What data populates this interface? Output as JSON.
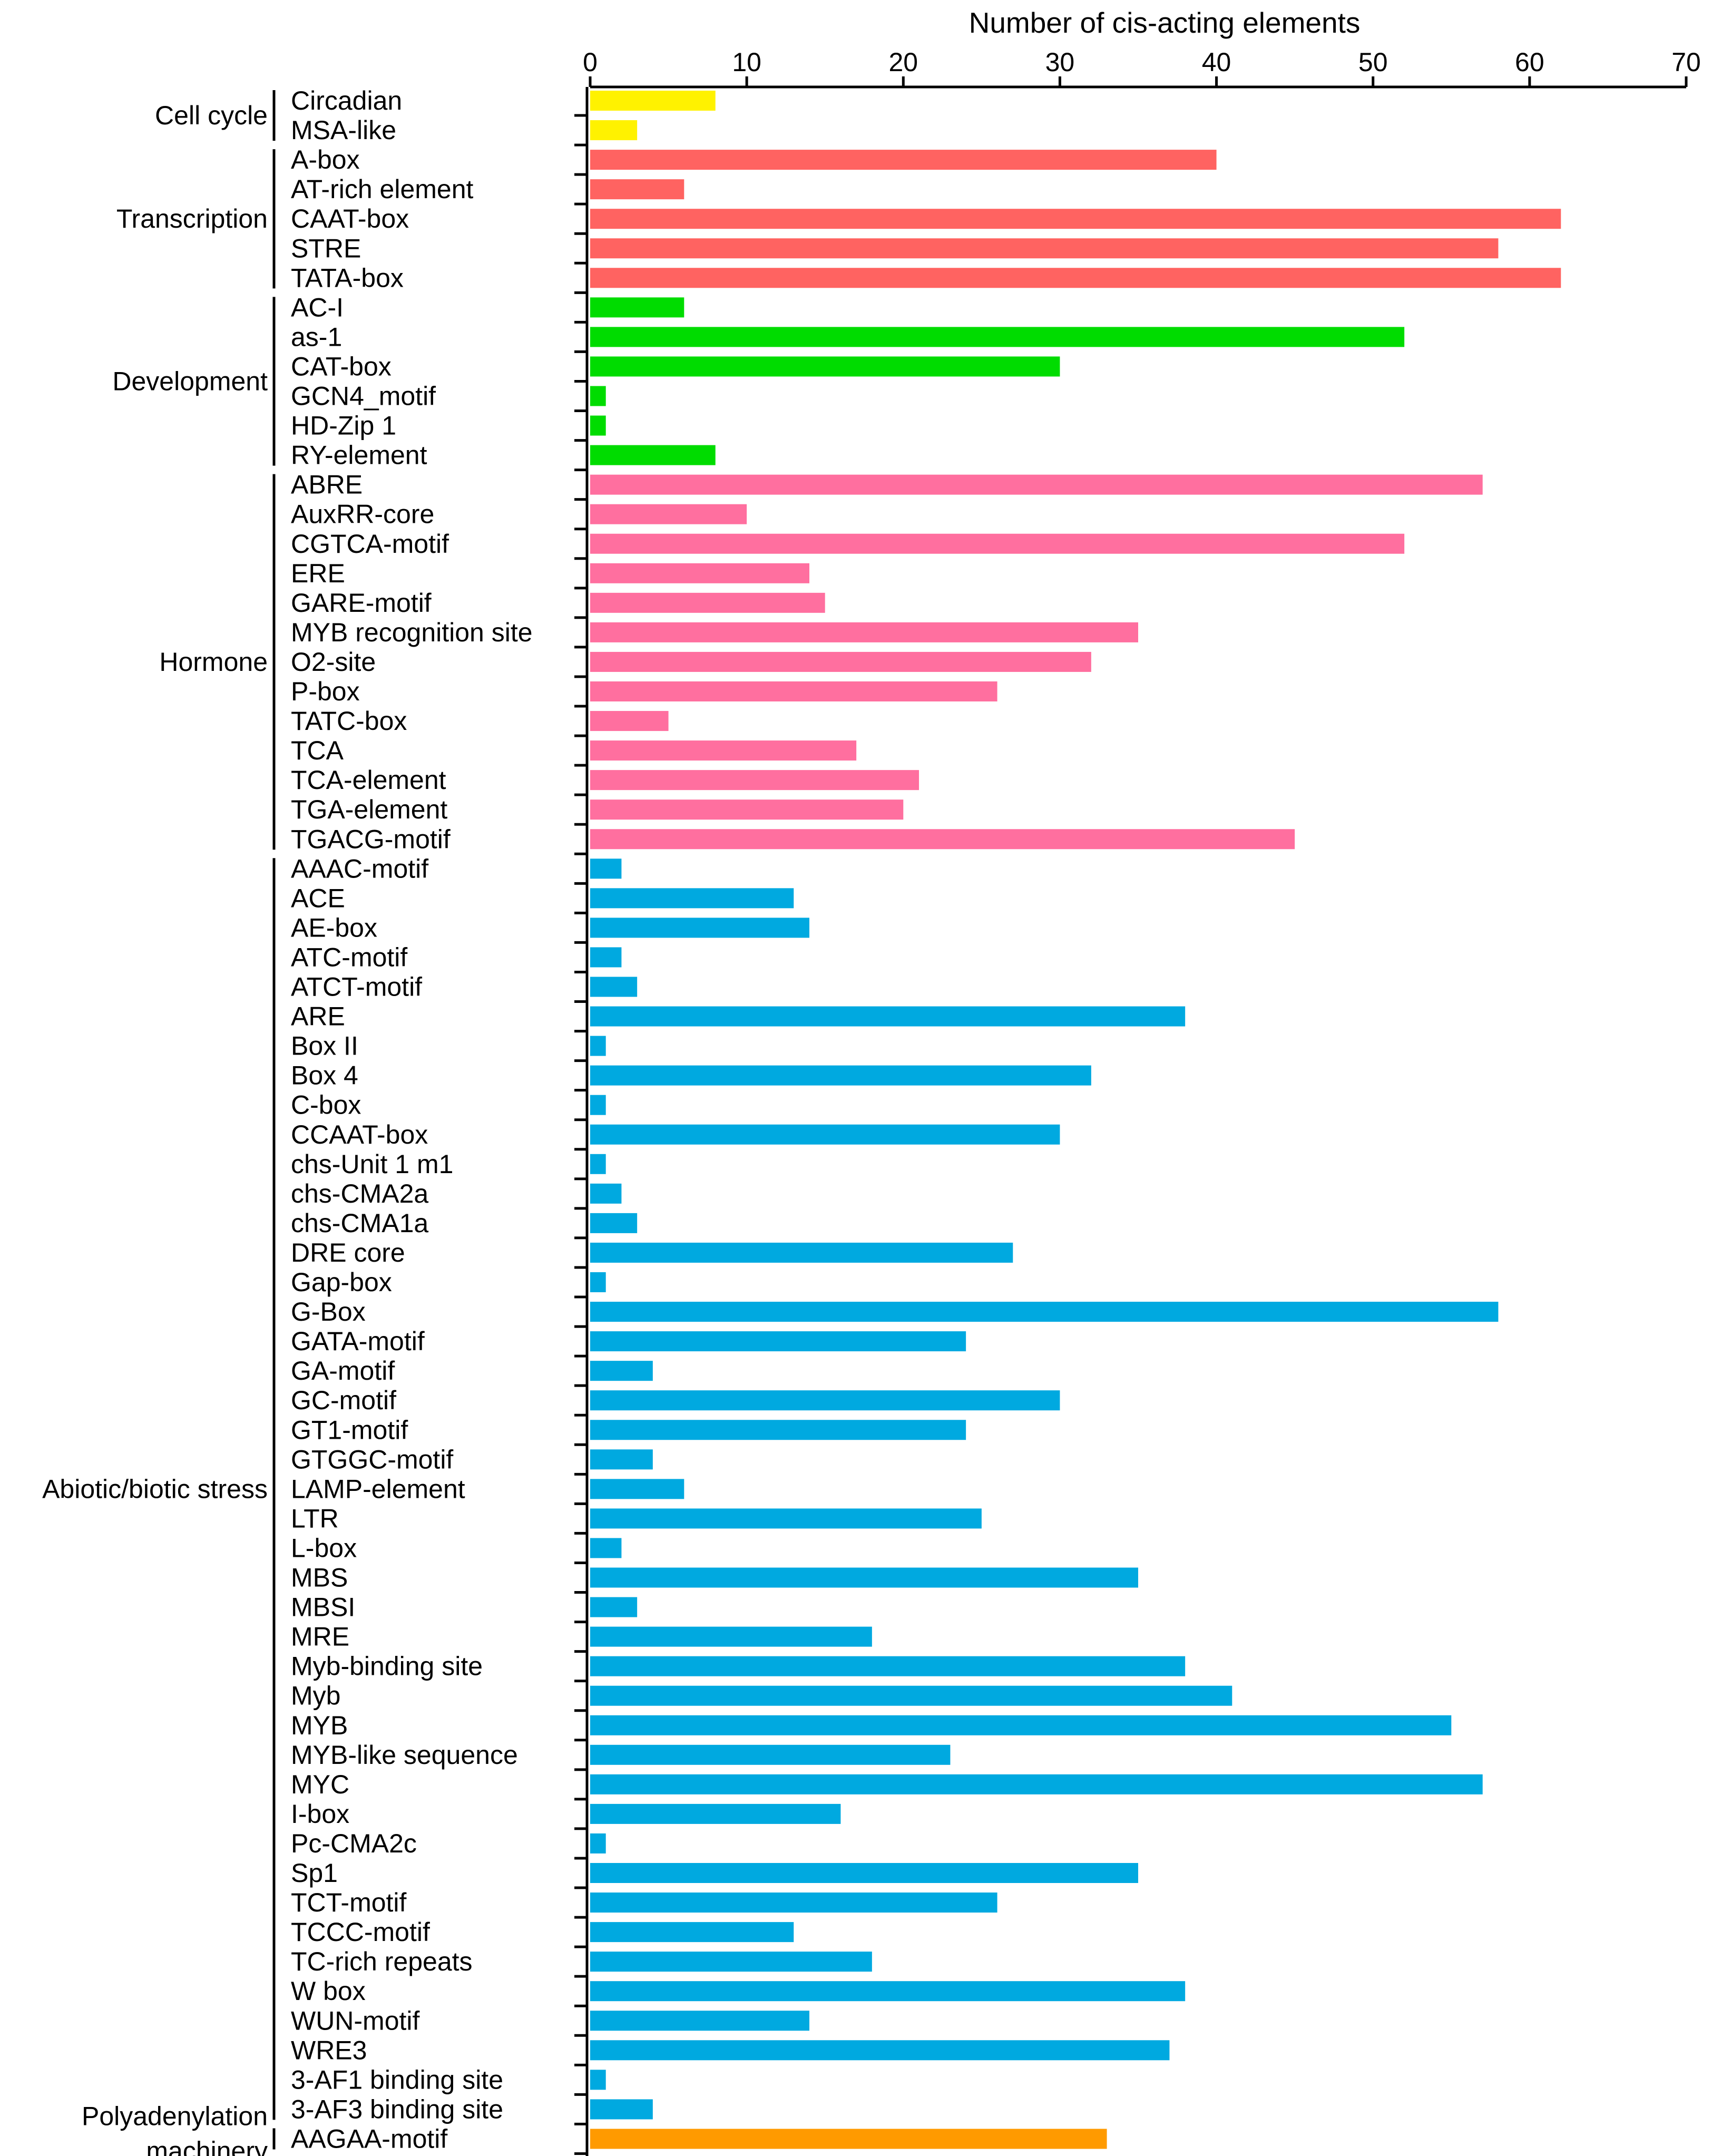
{
  "chart_data": {
    "type": "bar",
    "orientation": "horizontal",
    "xlabel": "Number of cis-acting elements",
    "xaxis_position": "top",
    "xlim": [
      0,
      70
    ],
    "xticks": [
      0,
      10,
      20,
      30,
      40,
      50,
      60,
      70
    ],
    "grid": false,
    "legend": "none",
    "groups": [
      {
        "name": "Cell cycle",
        "color": "#FFF200",
        "categories": [
          "Circadian",
          "MSA-like"
        ],
        "values": [
          8,
          3
        ]
      },
      {
        "name": "Transcription",
        "color": "#FF6361",
        "categories": [
          "A-box",
          "AT-rich element",
          "CAAT-box",
          "STRE",
          "TATA-box"
        ],
        "values": [
          40,
          6,
          62,
          58,
          62
        ]
      },
      {
        "name": "Development",
        "color": "#00DC00",
        "categories": [
          "AC-I",
          "as-1",
          "CAT-box",
          "GCN4_motif",
          "HD-Zip 1",
          "RY-element"
        ],
        "values": [
          6,
          52,
          30,
          1,
          1,
          8
        ]
      },
      {
        "name": "Hormone",
        "color": "#FF6F9F",
        "categories": [
          "ABRE",
          "AuxRR-core",
          "CGTCA-motif",
          "ERE",
          "GARE-motif",
          "MYB recognition site",
          "O2-site",
          "P-box",
          "TATC-box",
          "TCA",
          "TCA-element",
          "TGA-element",
          "TGACG-motif"
        ],
        "values": [
          57,
          10,
          52,
          14,
          15,
          35,
          32,
          26,
          5,
          17,
          21,
          20,
          45
        ]
      },
      {
        "name": "Abiotic/biotic stress",
        "color": "#00A9E0",
        "categories": [
          "AAAC-motif",
          "ACE",
          "AE-box",
          "ATC-motif",
          "ATCT-motif",
          "ARE",
          "Box II",
          "Box 4",
          "C-box",
          "CCAAT-box",
          "chs-Unit 1 m1",
          "chs-CMA2a",
          "chs-CMA1a",
          "DRE core",
          "Gap-box",
          "G-Box",
          "GATA-motif",
          "GA-motif",
          "GC-motif",
          "GT1-motif",
          "GTGGC-motif",
          "LAMP-element",
          "LTR",
          "L-box",
          "MBS",
          "MBSI",
          "MRE",
          "Myb-binding site",
          "Myb",
          "MYB",
          "MYB-like sequence",
          "MYC",
          "I-box",
          "Pc-CMA2c",
          "Sp1",
          "TCT-motif",
          "TCCC-motif",
          "TC-rich repeats",
          "W box",
          "WUN-motif",
          "WRE3",
          "3-AF1 binding site",
          "3-AF3 binding site"
        ],
        "values": [
          2,
          13,
          14,
          2,
          3,
          38,
          1,
          32,
          1,
          30,
          1,
          2,
          3,
          27,
          1,
          58,
          24,
          4,
          30,
          24,
          4,
          6,
          25,
          2,
          35,
          3,
          18,
          38,
          41,
          55,
          23,
          57,
          16,
          1,
          35,
          26,
          13,
          18,
          38,
          14,
          37,
          1,
          4
        ]
      },
      {
        "name": "Polyadenylation machinery",
        "name_lines": [
          "Polyadenylation",
          "machinery"
        ],
        "color": "#FF9A00",
        "categories": [
          "AAGAA-motif"
        ],
        "values": [
          33
        ]
      }
    ]
  }
}
